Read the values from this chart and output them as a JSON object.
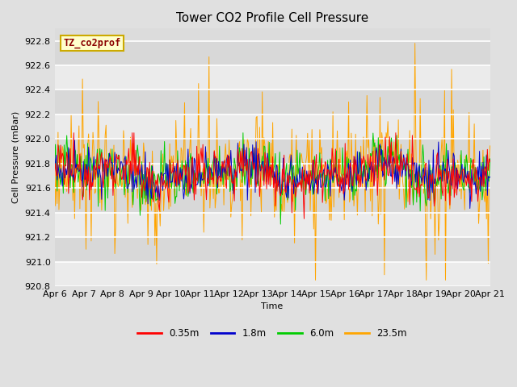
{
  "title": "Tower CO2 Profile Cell Pressure",
  "xlabel": "Time",
  "ylabel": "Cell Pressure (mBar)",
  "ylim": [
    920.8,
    922.9
  ],
  "annotation_text": "TZ_co2prof",
  "annotation_color": "#8B0000",
  "annotation_bg": "#FFFFCC",
  "annotation_border": "#CCAA00",
  "series": [
    "0.35m",
    "1.8m",
    "6.0m",
    "23.5m"
  ],
  "colors": [
    "#FF0000",
    "#0000CC",
    "#00CC00",
    "#FFA500"
  ],
  "n_points": 500,
  "base_mean": 921.72,
  "base_std": 0.12,
  "tick_dates": [
    "Apr 6",
    "Apr 7",
    "Apr 8",
    "Apr 9",
    "Apr 10",
    "Apr 11",
    "Apr 12",
    "Apr 13",
    "Apr 14",
    "Apr 15",
    "Apr 16",
    "Apr 17",
    "Apr 18",
    "Apr 19",
    "Apr 20",
    "Apr 21"
  ],
  "yticks": [
    920.8,
    921.0,
    921.2,
    921.4,
    921.6,
    921.8,
    922.0,
    922.2,
    922.4,
    922.6,
    922.8
  ],
  "background_color": "#E0E0E0",
  "plot_bg": "#DCDCDC",
  "band_color_light": "#EBEBEB",
  "band_color_dark": "#D8D8D8",
  "grid_color": "#C8C8C8",
  "linewidth": 0.7,
  "title_fontsize": 11,
  "label_fontsize": 8,
  "tick_fontsize": 8
}
